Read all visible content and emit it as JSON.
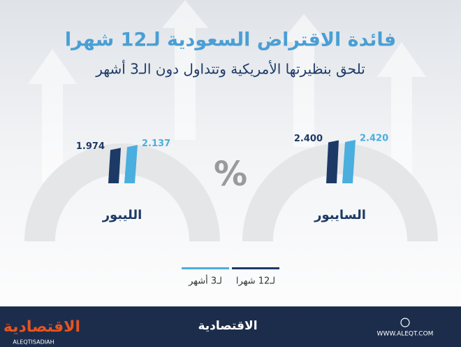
{
  "chart_data": {
    "type": "gauge",
    "title": "فائدة الاقتراض السعودية لـ12 شهرا",
    "subtitle": "تلحق بنظيرتها الأمريكية وتتداول دون الـ3 أشهر",
    "unit": "%",
    "categories": [
      "السايبور",
      "الليبور"
    ],
    "series": [
      {
        "name": "لـ12 شهرا",
        "color": "#1d3a66",
        "values": [
          2.4,
          1.974
        ],
        "value_labels": [
          "2.400",
          "1.974"
        ]
      },
      {
        "name": "لـ3 أشهر",
        "color": "#4aaede",
        "values": [
          2.42,
          2.137
        ],
        "value_labels": [
          "2.420",
          "2.137"
        ]
      }
    ]
  },
  "footer": {
    "brand": "الاقتصادية",
    "handle": "ALEQTISADIAH",
    "website": "WWW.ALEQT.COM"
  }
}
